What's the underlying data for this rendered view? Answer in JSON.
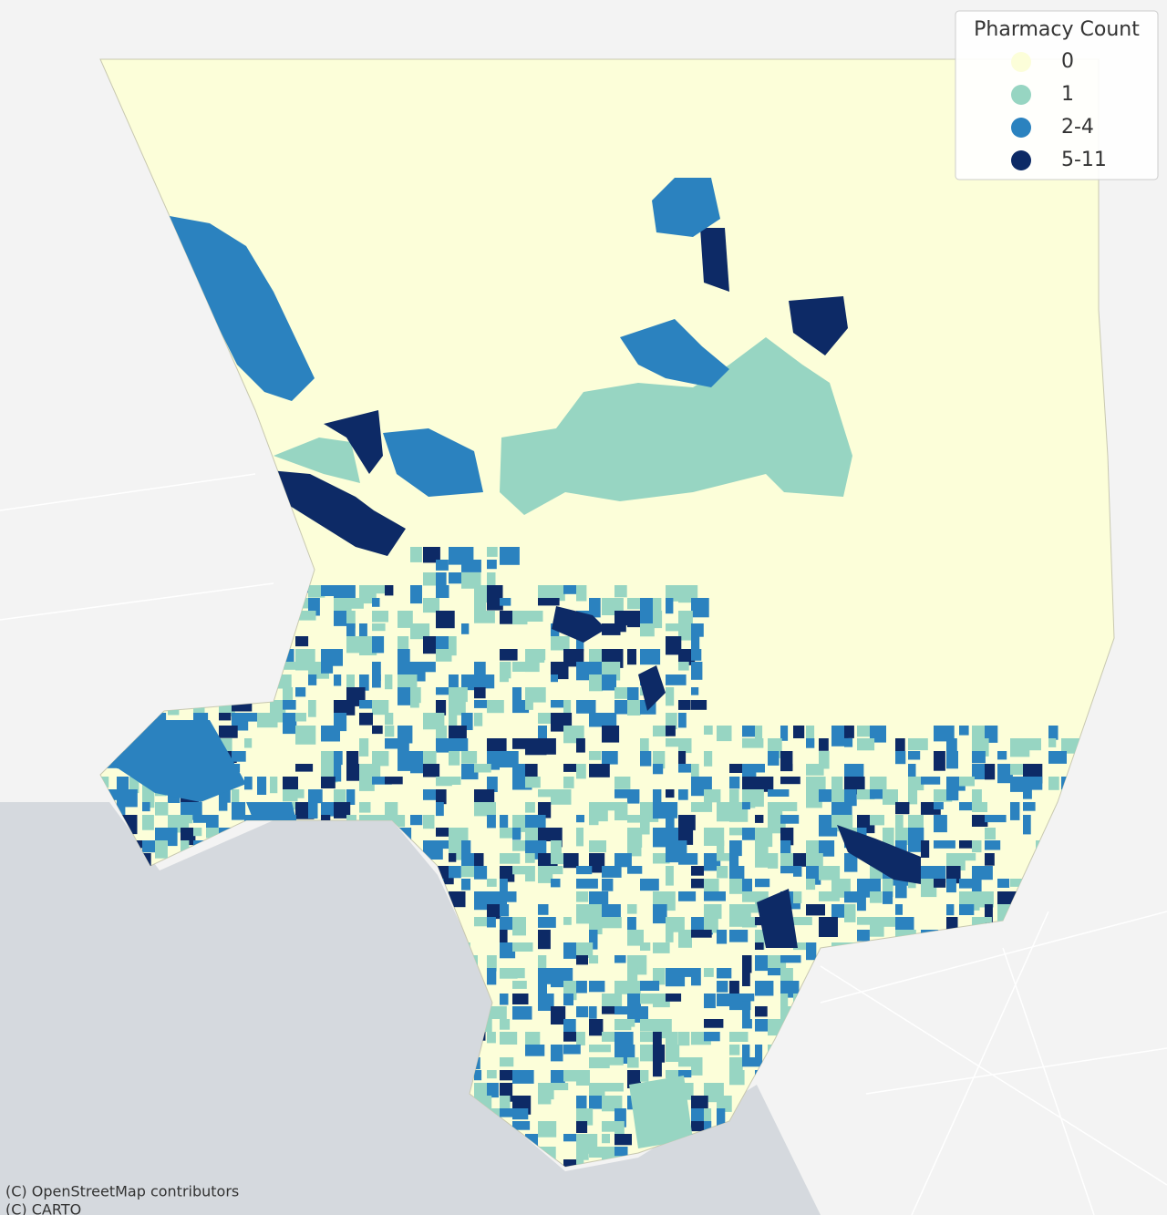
{
  "legend": {
    "title": "Pharmacy Count",
    "items": [
      {
        "label": "0",
        "color": "#fcfed9"
      },
      {
        "label": "1",
        "color": "#97d5c2"
      },
      {
        "label": "2-4",
        "color": "#2b82bf"
      },
      {
        "label": "5-11",
        "color": "#0d2a66"
      }
    ]
  },
  "attribution": [
    "(C) OpenStreetMap contributors",
    "(C) CARTO"
  ]
}
